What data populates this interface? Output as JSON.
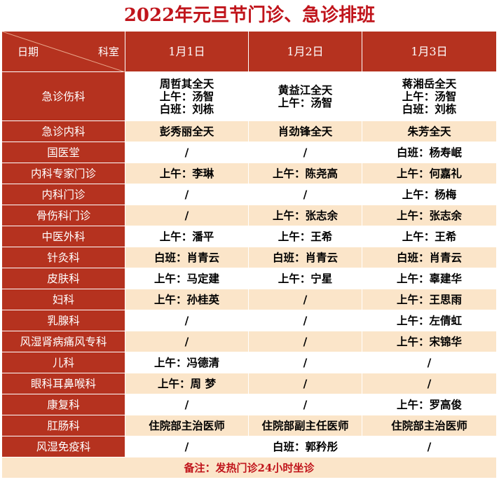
{
  "title": "2022年元旦节门诊、急诊排班",
  "corner": {
    "left": "日期",
    "right": "科室"
  },
  "dates": [
    "1月1日",
    "1月2日",
    "1月3日"
  ],
  "rows": [
    {
      "dept": "急诊伤科",
      "cells": [
        [
          "周哲其全天",
          "上午：汤智",
          "白班：刘栋"
        ],
        [
          "黄益江全天",
          "上午：汤智"
        ],
        [
          "蒋湘岳全天",
          "上午：汤智",
          "白班：刘栋"
        ]
      ]
    },
    {
      "dept": "急诊内科",
      "cells": [
        [
          "彭秀丽全天"
        ],
        [
          "肖劲锋全天"
        ],
        [
          "朱芳全天"
        ]
      ]
    },
    {
      "dept": "国医堂",
      "cells": [
        [
          "/"
        ],
        [
          "/"
        ],
        [
          "白班：杨寿岷"
        ]
      ]
    },
    {
      "dept": "内科专家门诊",
      "cells": [
        [
          "上午：李琳"
        ],
        [
          "上午：陈尧高"
        ],
        [
          "上午：何嘉礼"
        ]
      ]
    },
    {
      "dept": "内科门诊",
      "cells": [
        [
          "/"
        ],
        [
          "/"
        ],
        [
          "上午：杨梅"
        ]
      ]
    },
    {
      "dept": "骨伤科门诊",
      "cells": [
        [
          "/"
        ],
        [
          "上午：张志余"
        ],
        [
          "上午：张志余"
        ]
      ]
    },
    {
      "dept": "中医外科",
      "cells": [
        [
          "上午：潘平"
        ],
        [
          "上午：王希"
        ],
        [
          "上午：王希"
        ]
      ]
    },
    {
      "dept": "针灸科",
      "cells": [
        [
          "白班：肖青云"
        ],
        [
          "白班：肖青云"
        ],
        [
          "白班：肖青云"
        ]
      ]
    },
    {
      "dept": "皮肤科",
      "cells": [
        [
          "上午：马定建"
        ],
        [
          "上午：宁星"
        ],
        [
          "上午：辜建华"
        ]
      ]
    },
    {
      "dept": "妇科",
      "cells": [
        [
          "上午：孙桂英"
        ],
        [
          "/"
        ],
        [
          "上午：王思雨"
        ]
      ]
    },
    {
      "dept": "乳腺科",
      "cells": [
        [
          "/"
        ],
        [
          "/"
        ],
        [
          "上午：左倩虹"
        ]
      ]
    },
    {
      "dept": "风湿肾病痛风专科",
      "cells": [
        [
          "/"
        ],
        [
          "/"
        ],
        [
          "上午：宋锦华"
        ]
      ]
    },
    {
      "dept": "儿科",
      "cells": [
        [
          "上午：冯德清"
        ],
        [
          "/"
        ],
        [
          "/"
        ]
      ]
    },
    {
      "dept": "眼科耳鼻喉科",
      "cells": [
        [
          "上午：周 梦"
        ],
        [
          "/"
        ],
        [
          "/"
        ]
      ]
    },
    {
      "dept": "康复科",
      "cells": [
        [
          "/"
        ],
        [
          "/"
        ],
        [
          "上午：罗高俊"
        ]
      ]
    },
    {
      "dept": "肛肠科",
      "cells": [
        [
          "住院部主治医师"
        ],
        [
          "住院部副主任医师"
        ],
        [
          "住院部主治医师"
        ]
      ]
    },
    {
      "dept": "风湿免疫科",
      "cells": [
        [
          "/"
        ],
        [
          "白班：郭矜彤"
        ],
        [
          "/"
        ]
      ]
    }
  ],
  "note": "备注：发热门诊24小时坐诊"
}
